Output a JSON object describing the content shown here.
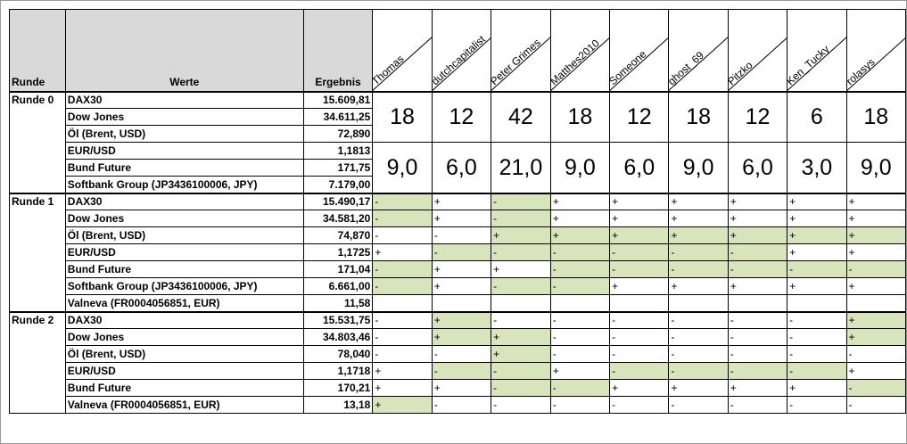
{
  "headers": {
    "runde": "Runde",
    "werte": "Werte",
    "ergebnis": "Ergebnis",
    "players": [
      "Thomas",
      "dutchcapitalist",
      "Peter Grimes",
      "Matthes2010",
      "Someone",
      "ghost_69",
      "Pitzko",
      "Ken_Tucky",
      "rolasys"
    ]
  },
  "round0": {
    "label": "Runde 0",
    "rows": [
      {
        "name": "DAX30",
        "value": "15.609,81"
      },
      {
        "name": "Dow Jones",
        "value": "34.611,25"
      },
      {
        "name": "Öl (Brent, USD)",
        "value": "72,890"
      },
      {
        "name": "EUR/USD",
        "value": "1,1813"
      },
      {
        "name": "Bund Future",
        "value": "171,75"
      },
      {
        "name": "Softbank Group (JP3436100006, JPY)",
        "value": "7.179,00"
      }
    ],
    "scores": [
      "18",
      "12",
      "42",
      "18",
      "12",
      "18",
      "12",
      "6",
      "18"
    ],
    "averages": [
      "9,0",
      "6,0",
      "21,0",
      "9,0",
      "6,0",
      "9,0",
      "6,0",
      "3,0",
      "9,0"
    ]
  },
  "round1": {
    "label": "Runde 1",
    "rows": [
      {
        "name": "DAX30",
        "value": "15.490,17",
        "tips": [
          "-",
          "+",
          "-",
          "+",
          "+",
          "+",
          "+",
          "+",
          "+"
        ],
        "hits": [
          1,
          0,
          1,
          0,
          0,
          0,
          0,
          0,
          0
        ]
      },
      {
        "name": "Dow Jones",
        "value": "34.581,20",
        "tips": [
          "-",
          "+",
          "-",
          "+",
          "+",
          "+",
          "+",
          "+",
          "+"
        ],
        "hits": [
          1,
          0,
          1,
          0,
          0,
          0,
          0,
          0,
          0
        ]
      },
      {
        "name": "Öl (Brent, USD)",
        "value": "74,870",
        "tips": [
          "-",
          "-",
          "+",
          "+",
          "+",
          "+",
          "+",
          "+",
          "+"
        ],
        "hits": [
          0,
          0,
          1,
          1,
          1,
          1,
          1,
          1,
          1
        ]
      },
      {
        "name": "EUR/USD",
        "value": "1,1725",
        "tips": [
          "+",
          "-",
          "-",
          "-",
          "-",
          "-",
          "-",
          "+",
          "+"
        ],
        "hits": [
          0,
          1,
          1,
          1,
          1,
          1,
          1,
          0,
          0
        ]
      },
      {
        "name": "Bund Future",
        "value": "171,04",
        "tips": [
          "-",
          "+",
          "+",
          "-",
          "-",
          "-",
          "-",
          "-",
          "-"
        ],
        "hits": [
          1,
          0,
          0,
          1,
          1,
          1,
          1,
          1,
          1
        ]
      },
      {
        "name": "Softbank Group (JP3436100006, JPY)",
        "value": "6.661,00",
        "tips": [
          "-",
          "+",
          "-",
          "-",
          "+",
          "+",
          "+",
          "+",
          "+"
        ],
        "hits": [
          1,
          0,
          1,
          1,
          0,
          0,
          0,
          0,
          0
        ]
      },
      {
        "name": "Valneva (FR0004056851, EUR)",
        "value": "11,58",
        "tips": [
          "",
          "",
          "",
          "",
          "",
          "",
          "",
          "",
          ""
        ],
        "hits": [
          0,
          0,
          0,
          0,
          0,
          0,
          0,
          0,
          0
        ]
      }
    ]
  },
  "round2": {
    "label": "Runde 2",
    "rows": [
      {
        "name": "DAX30",
        "value": "15.531,75",
        "tips": [
          "-",
          "+",
          "-",
          "-",
          "-",
          "-",
          "-",
          "-",
          "+"
        ],
        "hits": [
          0,
          1,
          0,
          0,
          0,
          0,
          0,
          0,
          1
        ]
      },
      {
        "name": "Dow Jones",
        "value": "34.803,46",
        "tips": [
          "-",
          "+",
          "+",
          "-",
          "-",
          "-",
          "-",
          "-",
          "+"
        ],
        "hits": [
          0,
          1,
          1,
          0,
          0,
          0,
          0,
          0,
          1
        ]
      },
      {
        "name": "Öl (Brent, USD)",
        "value": "78,040",
        "tips": [
          "-",
          "-",
          "+",
          "-",
          "-",
          "-",
          "-",
          "-",
          "-"
        ],
        "hits": [
          0,
          0,
          1,
          0,
          0,
          0,
          0,
          0,
          0
        ]
      },
      {
        "name": "EUR/USD",
        "value": "1,1718",
        "tips": [
          "+",
          "-",
          "-",
          "+",
          "-",
          "-",
          "-",
          "-",
          "+"
        ],
        "hits": [
          0,
          1,
          1,
          0,
          1,
          1,
          1,
          1,
          0
        ]
      },
      {
        "name": "Bund Future",
        "value": "170,21",
        "tips": [
          "+",
          "+",
          "-",
          "-",
          "+",
          "+",
          "+",
          "+",
          "-"
        ],
        "hits": [
          0,
          0,
          1,
          1,
          0,
          0,
          0,
          0,
          1
        ]
      },
      {
        "name": "Valneva (FR0004056851, EUR)",
        "value": "13,18",
        "tips": [
          "+",
          "-",
          "-",
          "-",
          "-",
          "-",
          "-",
          "-",
          "-"
        ],
        "hits": [
          1,
          0,
          0,
          0,
          0,
          0,
          0,
          0,
          0
        ]
      }
    ]
  }
}
